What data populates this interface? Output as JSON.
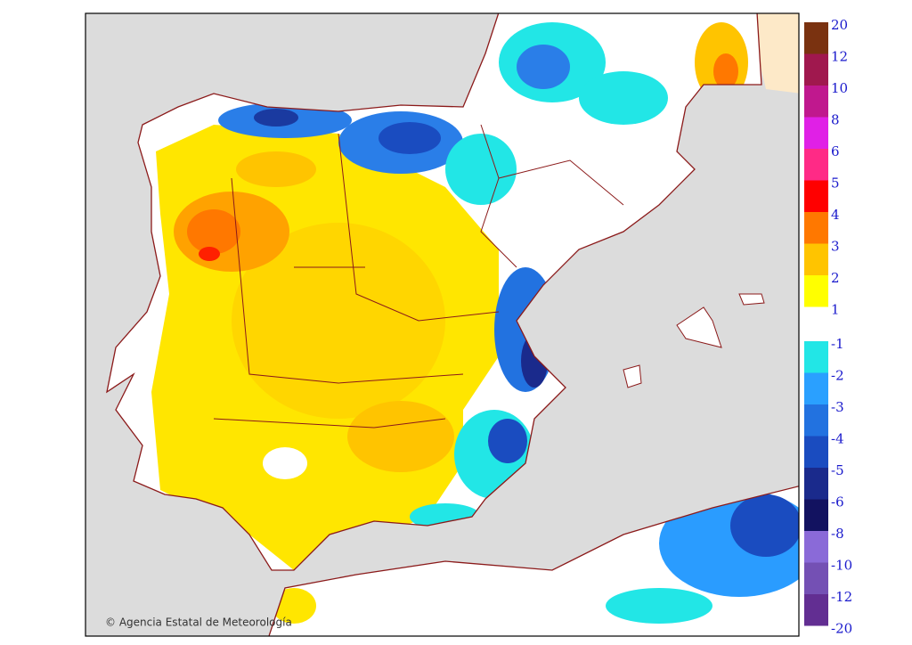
{
  "legend": {
    "positive": {
      "labels": [
        20,
        12,
        10,
        8,
        6,
        5,
        4,
        3,
        2,
        1
      ],
      "colors": [
        "#7a3210",
        "#a0184e",
        "#c0188e",
        "#e020e6",
        "#ff2a86",
        "#ff0000",
        "#ff7800",
        "#ffc400",
        "#ffff00"
      ]
    },
    "negative": {
      "labels": [
        -1,
        -2,
        -3,
        -4,
        -5,
        -6,
        -8,
        -10,
        -12,
        -20
      ],
      "colors": [
        "#22e6e6",
        "#2aa0ff",
        "#2272e0",
        "#1a4cc0",
        "#1a2a8c",
        "#121260",
        "#8a6ad8",
        "#7450b4",
        "#622e92"
      ]
    }
  },
  "credit": "© Agencia Estatal de Meteorología",
  "logo": "aemet"
}
